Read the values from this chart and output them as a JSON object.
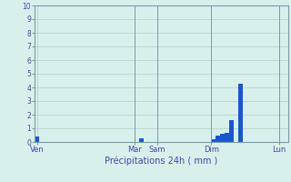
{
  "title": "Précipitations 24h ( mm )",
  "bar_color": "#1a56cc",
  "bg_color": "#d8f0ec",
  "grid_color": "#b0cdc8",
  "axis_label_color": "#4444aa",
  "tick_color": "#4444aa",
  "spine_color": "#7a9aaa",
  "ylim": [
    0,
    10
  ],
  "yticks": [
    0,
    1,
    2,
    3,
    4,
    5,
    6,
    7,
    8,
    9,
    10
  ],
  "num_bars": 56,
  "bar_values": [
    0.4,
    0.0,
    0.0,
    0.0,
    0.0,
    0.0,
    0.0,
    0.0,
    0.0,
    0.0,
    0.0,
    0.0,
    0.0,
    0.0,
    0.0,
    0.0,
    0.0,
    0.0,
    0.0,
    0.0,
    0.0,
    0.0,
    0.0,
    0.3,
    0.0,
    0.0,
    0.0,
    0.0,
    0.0,
    0.0,
    0.0,
    0.0,
    0.0,
    0.0,
    0.0,
    0.0,
    0.0,
    0.0,
    0.0,
    0.2,
    0.5,
    0.6,
    0.7,
    1.6,
    0.0,
    4.3,
    0.0,
    0.0,
    0.0,
    0.0,
    0.0,
    0.0,
    0.0,
    0.0,
    0.0,
    0.0
  ],
  "day_labels": [
    "Ven",
    "Mar",
    "Sam",
    "Dim",
    "Lun"
  ],
  "day_positions": [
    0.5,
    22,
    27,
    39,
    54
  ],
  "vline_positions": [
    0,
    22,
    27,
    39,
    54
  ]
}
